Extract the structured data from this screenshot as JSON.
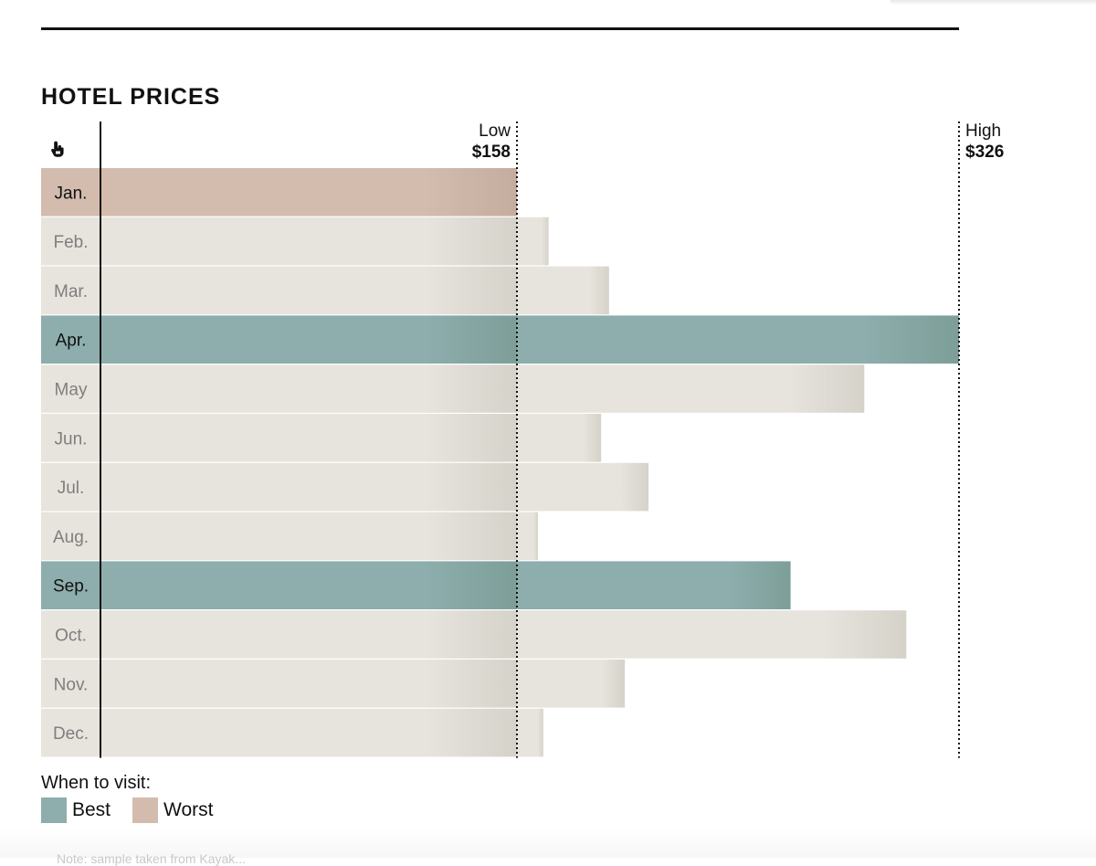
{
  "chart_data": {
    "type": "bar",
    "orientation": "horizontal",
    "title": "HOTEL PRICES",
    "categories": [
      "Jan.",
      "Feb.",
      "Mar.",
      "Apr.",
      "May",
      "Jun.",
      "Jul.",
      "Aug.",
      "Sep.",
      "Oct.",
      "Nov.",
      "Dec."
    ],
    "values": [
      158,
      170,
      193,
      326,
      290,
      190,
      208,
      166,
      262,
      306,
      199,
      168
    ],
    "highlight": [
      "worst",
      "normal",
      "normal",
      "best",
      "normal",
      "normal",
      "normal",
      "normal",
      "best",
      "normal",
      "normal",
      "normal"
    ],
    "xlim": [
      0,
      326
    ],
    "reference_lines": [
      {
        "label": "Low",
        "value_label": "$158",
        "value": 158
      },
      {
        "label": "High",
        "value_label": "$326",
        "value": 326
      }
    ]
  },
  "legend": {
    "heading": "When to visit:",
    "best_label": "Best",
    "worst_label": "Worst"
  },
  "colors": {
    "best": "#8daead",
    "best_dark": "#7d9e98",
    "worst": "#d3bcae",
    "worst_dark": "#c4ac9e",
    "normal": "#e7e4dd",
    "normal_dark": "#d5d2ca",
    "label_normal": "#7e7e7e",
    "label_highlight": "#111111"
  },
  "icons": {
    "interaction": "pointer-hand-icon"
  },
  "note": "Note: sample taken from Kayak..."
}
